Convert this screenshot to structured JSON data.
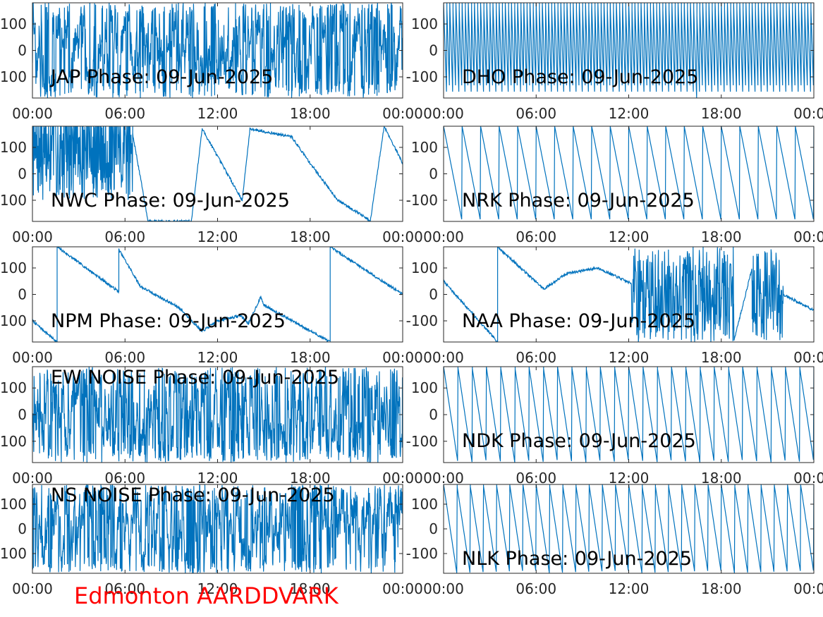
{
  "figure_title": "Edmonton AARDDVARK",
  "colors": {
    "line": "#0072bd",
    "axes": "#262626",
    "title": "#ff0000"
  },
  "chart_data": [
    {
      "type": "line",
      "title": "JAP Phase: 09-Jun-2025",
      "ylim": [
        -180,
        180
      ],
      "yticks": [
        "-100",
        "0",
        "100"
      ],
      "xticks": [
        "00:00",
        "06:00",
        "12:00",
        "18:00",
        "00:00"
      ],
      "xlim": [
        0,
        24
      ],
      "series": [
        {
          "kind": "noise",
          "seed": 11,
          "wrap_count": 160,
          "approx_y": 0
        }
      ]
    },
    {
      "type": "line",
      "title": "DHO Phase: 09-Jun-2025",
      "ylim": [
        -180,
        180
      ],
      "yticks": [
        "-100",
        "0",
        "100"
      ],
      "xticks": [
        "00:00",
        "06:00",
        "12:00",
        "18:00",
        "00:00"
      ],
      "xlim": [
        0,
        24
      ],
      "series": [
        {
          "kind": "sawtooth",
          "wraps_per_day": 120,
          "direction": "falling"
        }
      ]
    },
    {
      "type": "line",
      "title": "NWC Phase: 09-Jun-2025",
      "ylim": [
        -180,
        180
      ],
      "yticks": [
        "-100",
        "0",
        "100"
      ],
      "xticks": [
        "00:00",
        "06:00",
        "12:00",
        "18:00",
        "00:00"
      ],
      "xlim": [
        0,
        24
      ],
      "series": [
        {
          "kind": "piecewise",
          "noise_until": 6.5,
          "x": [
            6.5,
            7.5,
            8.8,
            10.3,
            11.0,
            13.6,
            14.1,
            16.8,
            18.0,
            19.8,
            21.2,
            21.9,
            22.8,
            24.0
          ],
          "y": [
            150,
            -180,
            -180,
            -180,
            170,
            -100,
            170,
            140,
            40,
            -100,
            -150,
            -180,
            180,
            40
          ]
        }
      ]
    },
    {
      "type": "line",
      "title": "NRK Phase: 09-Jun-2025",
      "ylim": [
        -180,
        180
      ],
      "yticks": [
        "-100",
        "0",
        "100"
      ],
      "xticks": [
        "00:00",
        "06:00",
        "12:00",
        "18:00",
        "00:00"
      ],
      "xlim": [
        0,
        24
      ],
      "series": [
        {
          "kind": "sawtooth",
          "wraps_per_day": 20,
          "direction": "falling"
        }
      ]
    },
    {
      "type": "line",
      "title": "NPM Phase: 09-Jun-2025",
      "ylim": [
        -180,
        180
      ],
      "yticks": [
        "-100",
        "0",
        "100"
      ],
      "xticks": [
        "00:00",
        "06:00",
        "12:00",
        "18:00",
        "00:00"
      ],
      "xlim": [
        0,
        24
      ],
      "series": [
        {
          "kind": "piecewise",
          "x": [
            0.0,
            1.6,
            1.6,
            5.6,
            5.6,
            7.0,
            9.5,
            11.0,
            12.0,
            13.5,
            14.0,
            14.8,
            15.0,
            19.3,
            19.3,
            24.0
          ],
          "y": [
            -100,
            -180,
            180,
            10,
            170,
            30,
            -50,
            -140,
            -100,
            -80,
            -110,
            -10,
            -40,
            -180,
            180,
            0
          ]
        }
      ]
    },
    {
      "type": "line",
      "title": "NAA Phase: 09-Jun-2025",
      "ylim": [
        -180,
        180
      ],
      "yticks": [
        "-100",
        "0",
        "100"
      ],
      "xticks": [
        "00:00",
        "06:00",
        "12:00",
        "18:00",
        "00:00"
      ],
      "xlim": [
        0,
        24
      ],
      "series": [
        {
          "kind": "piecewise",
          "x": [
            0.0,
            3.5,
            3.5,
            5.0,
            6.5,
            8.0,
            10.0,
            12.2,
            18.8,
            20.0,
            22.0,
            24.0
          ],
          "y": [
            50,
            -180,
            180,
            100,
            20,
            80,
            100,
            40,
            -180,
            100,
            0,
            -60
          ],
          "noise_ranges": [
            [
              12.2,
              18.8
            ],
            [
              20.0,
              22.0
            ]
          ]
        }
      ]
    },
    {
      "type": "line",
      "title": "EW NOISE Phase: 09-Jun-2025",
      "ylim": [
        -180,
        180
      ],
      "yticks": [
        "-100",
        "0",
        "100"
      ],
      "xticks": [
        "00:00",
        "06:00",
        "12:00",
        "18:00",
        "00:00"
      ],
      "xlim": [
        0,
        24
      ],
      "series": [
        {
          "kind": "noise",
          "seed": 23,
          "wrap_count": 110,
          "approx_y": 0
        }
      ]
    },
    {
      "type": "line",
      "title": "NDK Phase: 09-Jun-2025",
      "ylim": [
        -180,
        180
      ],
      "yticks": [
        "-100",
        "0",
        "100"
      ],
      "xticks": [
        "00:00",
        "06:00",
        "12:00",
        "18:00",
        "00:00"
      ],
      "xlim": [
        0,
        24
      ],
      "series": [
        {
          "kind": "sawtooth",
          "wraps_per_day": 26,
          "direction": "falling"
        }
      ]
    },
    {
      "type": "line",
      "title": "NS NOISE Phase: 09-Jun-2025",
      "ylim": [
        -180,
        180
      ],
      "yticks": [
        "-100",
        "0",
        "100"
      ],
      "xticks": [
        "00:00",
        "06:00",
        "12:00",
        "18:00",
        "00:00"
      ],
      "xlim": [
        0,
        24
      ],
      "series": [
        {
          "kind": "noise",
          "seed": 37,
          "wrap_count": 90,
          "approx_y": 0
        }
      ]
    },
    {
      "type": "line",
      "title": "NLK Phase: 09-Jun-2025",
      "ylim": [
        -180,
        180
      ],
      "yticks": [
        "-100",
        "0",
        "100"
      ],
      "xticks": [
        "00:00",
        "06:00",
        "12:00",
        "18:00",
        "00:00"
      ],
      "xlim": [
        0,
        24
      ],
      "series": [
        {
          "kind": "sawtooth",
          "wraps_per_day": 28,
          "direction": "falling"
        }
      ]
    }
  ]
}
